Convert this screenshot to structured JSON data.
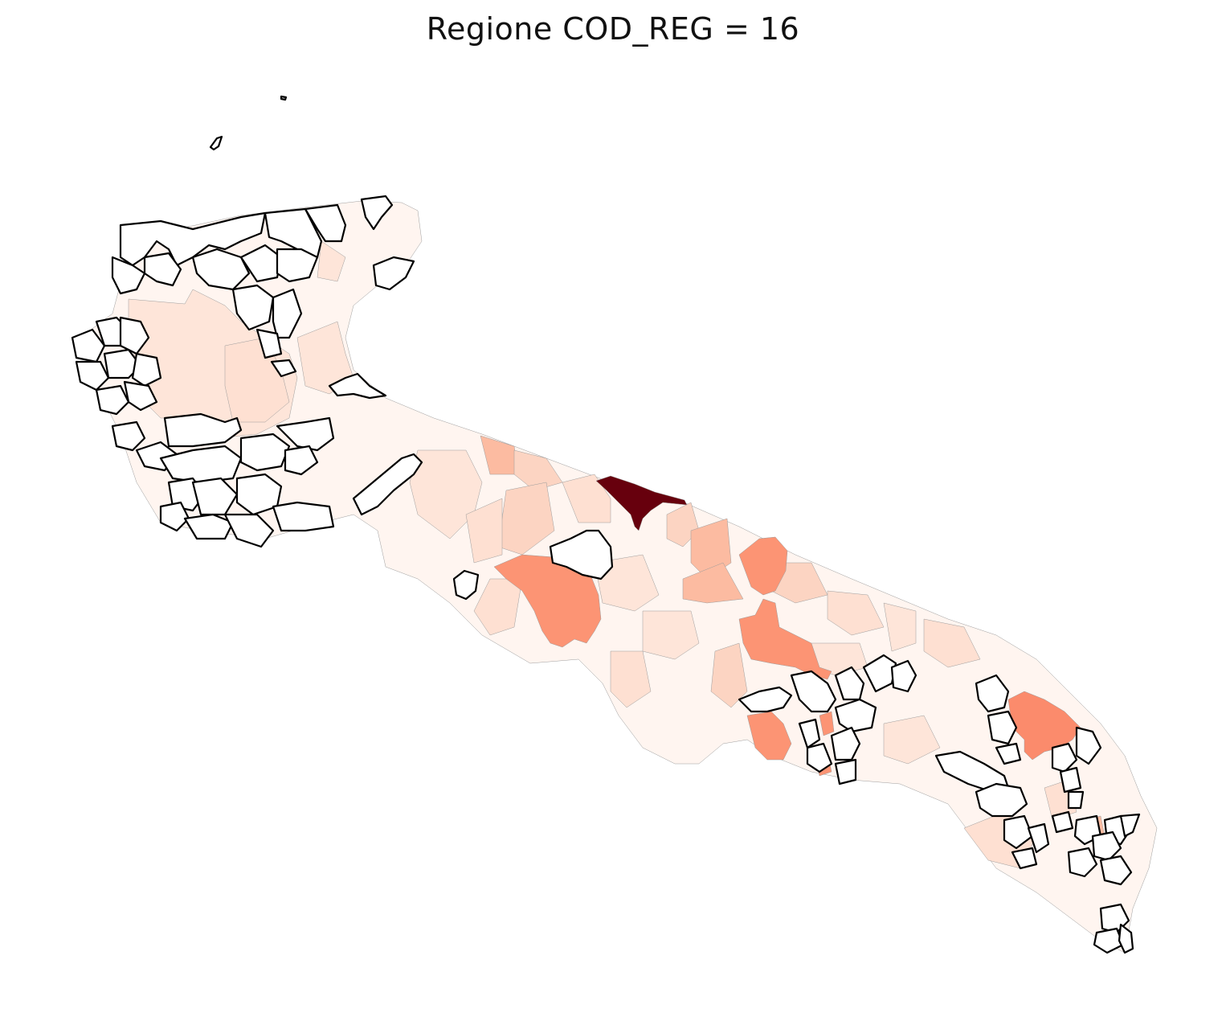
{
  "map": {
    "title": "Regione COD_REG = 16",
    "colormap": "Reds",
    "colors": {
      "very_light": "#fff5f0",
      "light": "#fee5d9",
      "light_mid": "#fcd4c2",
      "mid": "#fcbba1",
      "mid_dark": "#fc9474",
      "dark": "#fb8b6c",
      "max": "#67000d",
      "no_data_fill": "#ffffff",
      "no_data_stroke": "#000000"
    }
  }
}
